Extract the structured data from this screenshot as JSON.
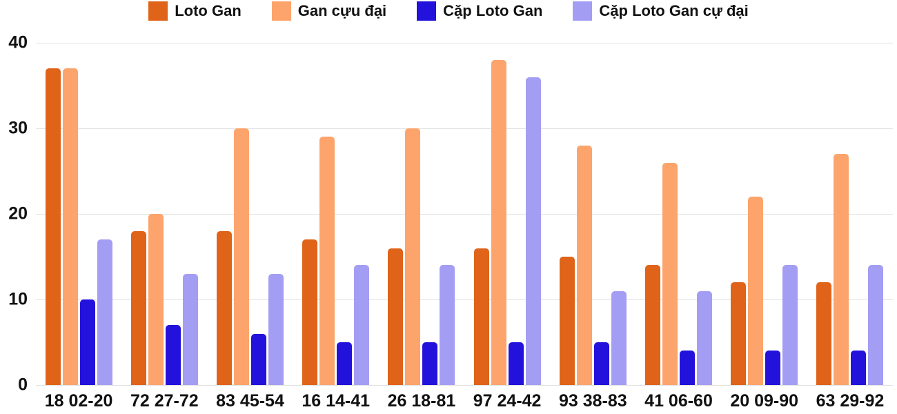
{
  "chart_data": {
    "type": "bar",
    "title": "",
    "xlabel": "",
    "ylabel": "",
    "categories": [
      "18 02-20",
      "72 27-72",
      "83 45-54",
      "16 14-41",
      "26 18-81",
      "97 24-42",
      "93 38-83",
      "41 06-60",
      "20 09-90",
      "63 29-92"
    ],
    "series": [
      {
        "name": "Loto Gan",
        "color": "#df6319",
        "values": [
          37,
          18,
          18,
          17,
          16,
          16,
          15,
          14,
          12,
          12
        ]
      },
      {
        "name": "Gan cựu đại",
        "color": "#fca46c",
        "values": [
          37,
          20,
          30,
          29,
          30,
          38,
          28,
          26,
          22,
          27
        ]
      },
      {
        "name": "Cặp Loto Gan",
        "color": "#2312db",
        "values": [
          10,
          7,
          6,
          5,
          5,
          5,
          5,
          4,
          4,
          4
        ]
      },
      {
        "name": "Cặp Loto Gan cự đại",
        "color": "#a39ef4",
        "values": [
          17,
          13,
          13,
          14,
          14,
          36,
          11,
          11,
          14,
          14
        ]
      }
    ],
    "ylim": [
      0,
      40
    ],
    "yticks": [
      0,
      10,
      20,
      30,
      40
    ],
    "grid": true,
    "legend_position": "top",
    "colors": {
      "grid": "#e2e2e2",
      "text": "#111111",
      "background": "#ffffff"
    }
  }
}
